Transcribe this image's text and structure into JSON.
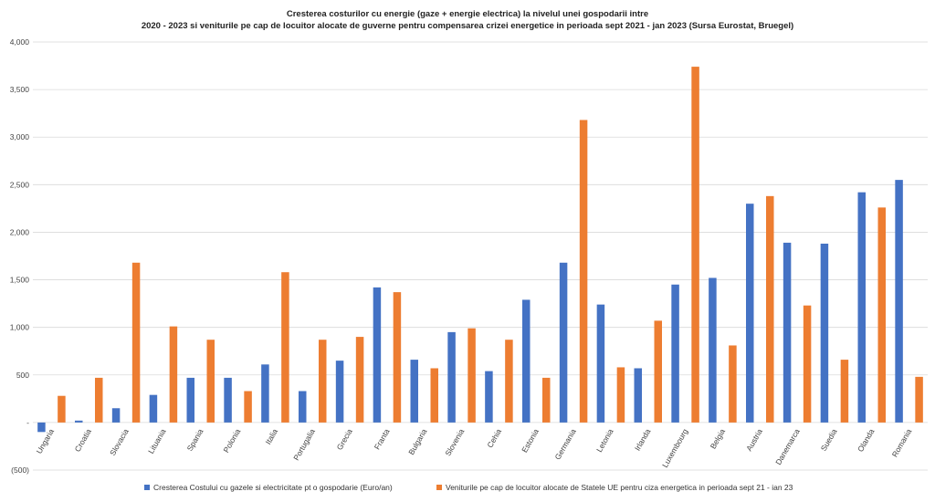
{
  "chart_data": {
    "type": "bar",
    "title_line1": "Cresterea costurilor cu energie (gaze + energie electrica) la nivelul unei gospodarii intre",
    "title_line2": "2020 - 2023 si veniturile pe cap de locuitor alocate de guverne pentru compensarea crizei energetice in perioada sept 2021 - jan 2023 (Sursa Eurostat, Bruegel)",
    "categories": [
      "Ungaria",
      "Croatia",
      "Slovacia",
      "Lituania",
      "Spania",
      "Polonia",
      "Italia",
      "Portugalia",
      "Grecia",
      "Franta",
      "Bulgaria",
      "Slovenia",
      "Cehia",
      "Estonia",
      "Germania",
      "Letonia",
      "Irlanda",
      "Luxembourg",
      "Belgia",
      "Austria",
      "Danemarca",
      "Suedia",
      "Olanda",
      "Romania"
    ],
    "series": [
      {
        "name": "Cresterea Costului cu gazele si electricitate pt o gospodarie (Euro/an)",
        "color": "#4472C4",
        "values": [
          -100,
          20,
          150,
          290,
          470,
          470,
          610,
          330,
          650,
          1420,
          660,
          950,
          540,
          1290,
          1680,
          1240,
          570,
          1450,
          1520,
          2300,
          1890,
          1880,
          2420,
          2550
        ]
      },
      {
        "name": "Veniturile pe cap de locuitor alocate de Statele UE pentru ciza energetica in perioada sept 21 - ian 23",
        "color": "#ED7D31",
        "values": [
          280,
          470,
          1680,
          1010,
          870,
          330,
          1580,
          870,
          900,
          1370,
          570,
          990,
          870,
          470,
          3180,
          580,
          1070,
          3740,
          810,
          2380,
          1230,
          660,
          2260,
          480
        ]
      }
    ],
    "ylim": [
      -500,
      4000
    ],
    "yticks": [
      4000,
      3500,
      3000,
      2500,
      2000,
      1500,
      1000,
      500,
      0,
      -500
    ],
    "ytick_labels": [
      "4,000",
      "3,500",
      "3,000",
      "2,500",
      "2,000",
      "1,500",
      "1,000",
      "500",
      "-",
      "(500)"
    ],
    "grid": true,
    "legend_position": "bottom"
  }
}
